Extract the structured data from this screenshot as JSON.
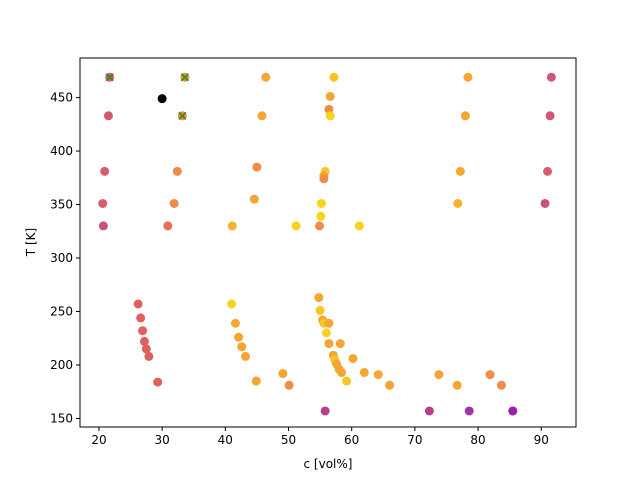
{
  "chart_data": {
    "type": "scatter",
    "title": "",
    "xlabel": "c [vol%]",
    "ylabel": "T [K]",
    "xlim": [
      17,
      95.5
    ],
    "ylim": [
      142,
      487
    ],
    "xticks": [
      20,
      30,
      40,
      50,
      60,
      70,
      80,
      90
    ],
    "yticks": [
      150,
      200,
      250,
      300,
      350,
      400,
      450
    ],
    "grid": false,
    "points": [
      {
        "x": 21.7,
        "y": 469,
        "color": "#d95c6a"
      },
      {
        "x": 33.6,
        "y": 469,
        "color": "#ee8a4a"
      },
      {
        "x": 46.4,
        "y": 469,
        "color": "#f5a532"
      },
      {
        "x": 57.2,
        "y": 469,
        "color": "#f8c525"
      },
      {
        "x": 78.4,
        "y": 469,
        "color": "#f5a532"
      },
      {
        "x": 91.6,
        "y": 469,
        "color": "#d05775"
      },
      {
        "x": 30.0,
        "y": 449,
        "color": "#000000"
      },
      {
        "x": 56.6,
        "y": 451,
        "color": "#f5a532"
      },
      {
        "x": 56.4,
        "y": 439,
        "color": "#f08c45"
      },
      {
        "x": 21.5,
        "y": 433,
        "color": "#d45874"
      },
      {
        "x": 33.2,
        "y": 433,
        "color": "#ee8a4a"
      },
      {
        "x": 45.8,
        "y": 433,
        "color": "#f5a532"
      },
      {
        "x": 56.6,
        "y": 433,
        "color": "#f8d31e"
      },
      {
        "x": 78.0,
        "y": 433,
        "color": "#f5a532"
      },
      {
        "x": 91.4,
        "y": 433,
        "color": "#d05775"
      },
      {
        "x": 45.0,
        "y": 385,
        "color": "#f08c45"
      },
      {
        "x": 55.8,
        "y": 381,
        "color": "#f8c525"
      },
      {
        "x": 55.6,
        "y": 377,
        "color": "#f5a532"
      },
      {
        "x": 55.6,
        "y": 374,
        "color": "#f08c45"
      },
      {
        "x": 20.9,
        "y": 381,
        "color": "#d95c6a"
      },
      {
        "x": 32.4,
        "y": 381,
        "color": "#ee8a4a"
      },
      {
        "x": 77.2,
        "y": 381,
        "color": "#f5a532"
      },
      {
        "x": 91.0,
        "y": 381,
        "color": "#d95c6a"
      },
      {
        "x": 44.6,
        "y": 355,
        "color": "#f5a532"
      },
      {
        "x": 55.2,
        "y": 351,
        "color": "#f8d31e"
      },
      {
        "x": 20.6,
        "y": 351,
        "color": "#d95c6a"
      },
      {
        "x": 31.9,
        "y": 351,
        "color": "#ee8a4a"
      },
      {
        "x": 76.8,
        "y": 351,
        "color": "#f8b22d"
      },
      {
        "x": 90.6,
        "y": 351,
        "color": "#c8507e"
      },
      {
        "x": 55.1,
        "y": 339,
        "color": "#f8d31e"
      },
      {
        "x": 20.7,
        "y": 330,
        "color": "#cc4f80"
      },
      {
        "x": 30.9,
        "y": 330,
        "color": "#e86f55"
      },
      {
        "x": 41.1,
        "y": 330,
        "color": "#f8b22d"
      },
      {
        "x": 51.2,
        "y": 330,
        "color": "#f8d31e"
      },
      {
        "x": 54.9,
        "y": 330,
        "color": "#f08c45"
      },
      {
        "x": 61.2,
        "y": 330,
        "color": "#f8d31e"
      },
      {
        "x": 26.2,
        "y": 257,
        "color": "#e0605e"
      },
      {
        "x": 26.6,
        "y": 244,
        "color": "#e0605e"
      },
      {
        "x": 26.9,
        "y": 232,
        "color": "#e0605e"
      },
      {
        "x": 27.2,
        "y": 222,
        "color": "#e0605e"
      },
      {
        "x": 27.5,
        "y": 215,
        "color": "#e0605e"
      },
      {
        "x": 27.9,
        "y": 208,
        "color": "#e0605e"
      },
      {
        "x": 29.3,
        "y": 184,
        "color": "#e0605e"
      },
      {
        "x": 41.0,
        "y": 257,
        "color": "#f8d31e"
      },
      {
        "x": 41.6,
        "y": 239,
        "color": "#f5a532"
      },
      {
        "x": 42.1,
        "y": 226,
        "color": "#f5a532"
      },
      {
        "x": 42.6,
        "y": 217,
        "color": "#f5a532"
      },
      {
        "x": 43.2,
        "y": 208,
        "color": "#f5a532"
      },
      {
        "x": 44.9,
        "y": 185,
        "color": "#f5a532"
      },
      {
        "x": 49.1,
        "y": 192,
        "color": "#f5a532"
      },
      {
        "x": 50.1,
        "y": 181,
        "color": "#f08c45"
      },
      {
        "x": 54.8,
        "y": 263,
        "color": "#f5a532"
      },
      {
        "x": 55.0,
        "y": 251,
        "color": "#f8c525"
      },
      {
        "x": 55.4,
        "y": 242,
        "color": "#f5a532"
      },
      {
        "x": 55.6,
        "y": 239,
        "color": "#f8c525"
      },
      {
        "x": 56.4,
        "y": 239,
        "color": "#f5a532"
      },
      {
        "x": 56.0,
        "y": 230,
        "color": "#f8d31e"
      },
      {
        "x": 56.4,
        "y": 220,
        "color": "#f5a532"
      },
      {
        "x": 58.2,
        "y": 220,
        "color": "#f5a532"
      },
      {
        "x": 57.1,
        "y": 209,
        "color": "#f5a532"
      },
      {
        "x": 57.3,
        "y": 205,
        "color": "#f8c525"
      },
      {
        "x": 57.6,
        "y": 201,
        "color": "#f5a532"
      },
      {
        "x": 58.0,
        "y": 196,
        "color": "#f5a532"
      },
      {
        "x": 58.4,
        "y": 193,
        "color": "#f5a532"
      },
      {
        "x": 59.2,
        "y": 185,
        "color": "#f8c525"
      },
      {
        "x": 60.2,
        "y": 206,
        "color": "#f5a532"
      },
      {
        "x": 62.0,
        "y": 193,
        "color": "#f5a532"
      },
      {
        "x": 64.2,
        "y": 191,
        "color": "#f5a532"
      },
      {
        "x": 66.0,
        "y": 181,
        "color": "#f5a532"
      },
      {
        "x": 73.8,
        "y": 191,
        "color": "#f5a532"
      },
      {
        "x": 76.7,
        "y": 181,
        "color": "#f5a532"
      },
      {
        "x": 81.9,
        "y": 191,
        "color": "#f08c45"
      },
      {
        "x": 83.7,
        "y": 181,
        "color": "#f08c45"
      },
      {
        "x": 55.8,
        "y": 157,
        "color": "#b63f92"
      },
      {
        "x": 72.3,
        "y": 157,
        "color": "#b63f92"
      },
      {
        "x": 78.6,
        "y": 157,
        "color": "#a433a0"
      },
      {
        "x": 85.5,
        "y": 157,
        "color": "#9a1fad"
      }
    ],
    "crosses": [
      {
        "x": 21.7,
        "y": 469,
        "color": "#3a8a1a"
      },
      {
        "x": 33.6,
        "y": 469,
        "color": "#3a8a1a"
      },
      {
        "x": 33.2,
        "y": 433,
        "color": "#3a8a1a"
      }
    ]
  }
}
